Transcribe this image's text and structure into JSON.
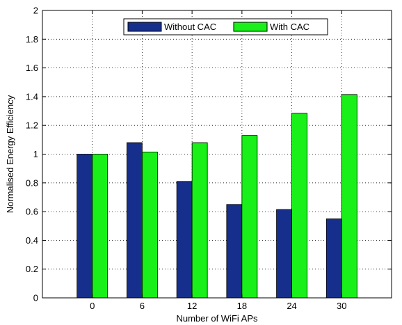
{
  "chart_data": {
    "type": "bar",
    "categories": [
      "0",
      "6",
      "12",
      "18",
      "24",
      "30"
    ],
    "series": [
      {
        "name": "Without CAC",
        "values": [
          1.0,
          1.08,
          0.81,
          0.65,
          0.615,
          0.55
        ]
      },
      {
        "name": "With CAC",
        "values": [
          1.0,
          1.015,
          1.08,
          1.13,
          1.285,
          1.415
        ]
      }
    ],
    "xlabel": "Number of WiFi APs",
    "ylabel": "Normalised Energy Efficiency",
    "ylim": [
      0,
      2
    ],
    "yticks": [
      "0",
      "0.2",
      "0.4",
      "0.6",
      "0.8",
      "1",
      "1.2",
      "1.4",
      "1.6",
      "1.8",
      "2"
    ],
    "grid": true,
    "legend": "top-center",
    "colors": {
      "Without CAC": "#172f8c",
      "With CAC": "#19f019"
    }
  }
}
